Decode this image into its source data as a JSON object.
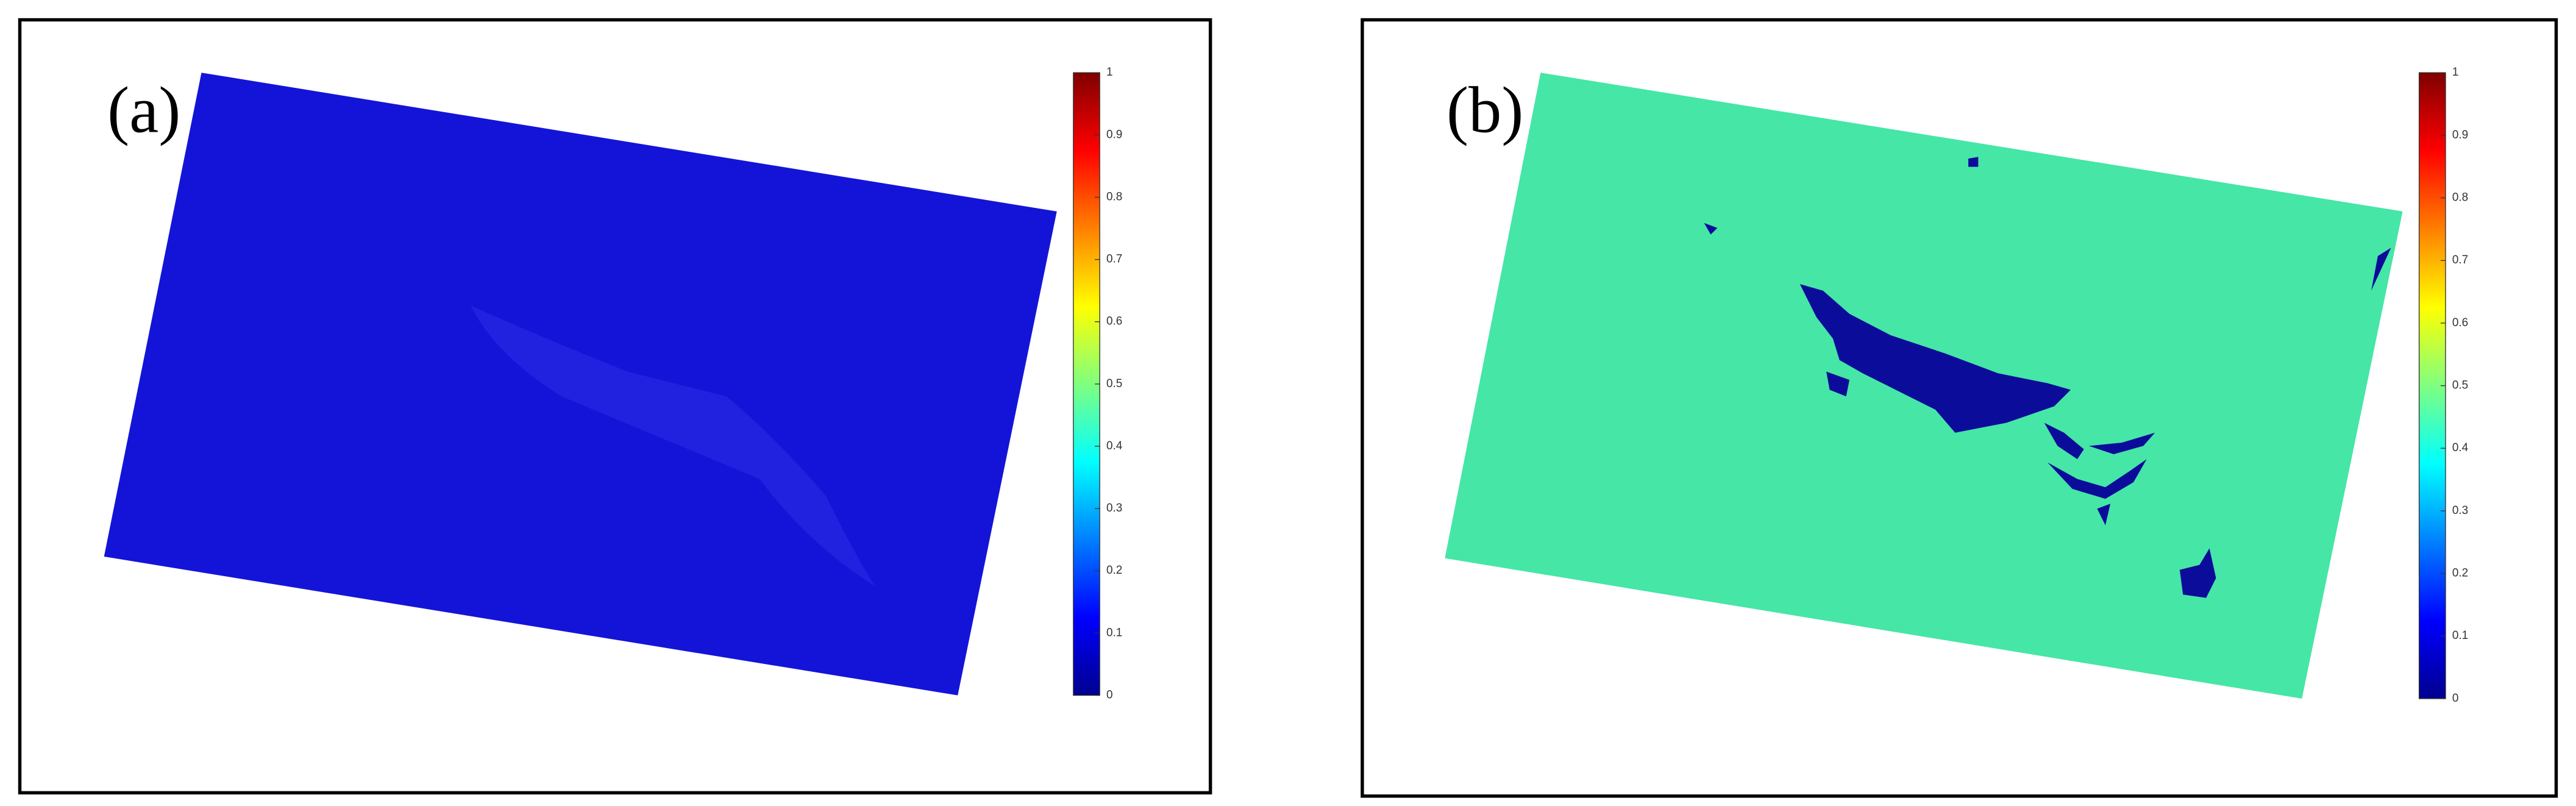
{
  "panels": [
    {
      "label": "(a)",
      "colorbar_ticks": [
        0,
        0.1,
        0.2,
        0.3,
        0.4,
        0.5,
        0.6,
        0.7,
        0.8,
        0.9,
        1
      ]
    },
    {
      "label": "(b)",
      "colorbar_ticks": [
        0,
        0.1,
        0.2,
        0.3,
        0.4,
        0.5,
        0.6,
        0.7,
        0.8,
        0.9,
        1
      ]
    }
  ]
}
